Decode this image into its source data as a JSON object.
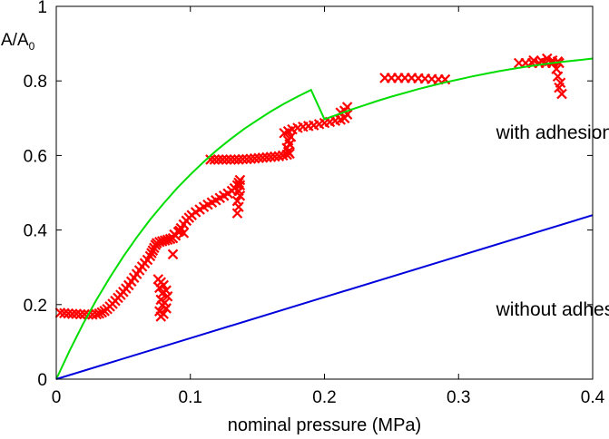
{
  "chart_data": {
    "type": "scatter",
    "xlabel": "nominal pressure (MPa)",
    "ylabel": "A/A",
    "ylabel_subscript": "0",
    "xlim": [
      0,
      0.4
    ],
    "ylim": [
      0,
      1
    ],
    "xticks": [
      0,
      0.1,
      0.2,
      0.3,
      0.4
    ],
    "xtick_labels": [
      "0",
      "0.1",
      "0.2",
      "0.3",
      "0.4"
    ],
    "yticks": [
      0,
      0.2,
      0.4,
      0.6,
      0.8,
      1
    ],
    "ytick_labels": [
      "0",
      "0.2",
      "0.4",
      "0.6",
      "0.8",
      "1"
    ],
    "grid": false,
    "annotations": [
      {
        "text": "with adhesion",
        "x": 0.328,
        "y": 0.645
      },
      {
        "text": "without adhesion",
        "x": 0.328,
        "y": 0.17
      }
    ],
    "series": [
      {
        "kind": "scatter",
        "marker": "x",
        "color": "#ff0000",
        "points": [
          [
            0.003,
            0.178
          ],
          [
            0.006,
            0.177
          ],
          [
            0.009,
            0.176
          ],
          [
            0.012,
            0.175
          ],
          [
            0.015,
            0.175
          ],
          [
            0.018,
            0.174
          ],
          [
            0.021,
            0.174
          ],
          [
            0.024,
            0.173
          ],
          [
            0.027,
            0.173
          ],
          [
            0.03,
            0.174
          ],
          [
            0.032,
            0.176
          ],
          [
            0.034,
            0.179
          ],
          [
            0.036,
            0.183
          ],
          [
            0.038,
            0.188
          ],
          [
            0.04,
            0.195
          ],
          [
            0.042,
            0.202
          ],
          [
            0.044,
            0.21
          ],
          [
            0.046,
            0.218
          ],
          [
            0.048,
            0.226
          ],
          [
            0.05,
            0.234
          ],
          [
            0.052,
            0.243
          ],
          [
            0.054,
            0.252
          ],
          [
            0.056,
            0.262
          ],
          [
            0.058,
            0.272
          ],
          [
            0.06,
            0.282
          ],
          [
            0.062,
            0.292
          ],
          [
            0.064,
            0.302
          ],
          [
            0.066,
            0.311
          ],
          [
            0.068,
            0.32
          ],
          [
            0.07,
            0.33
          ],
          [
            0.071,
            0.338
          ],
          [
            0.072,
            0.345
          ],
          [
            0.073,
            0.352
          ],
          [
            0.074,
            0.36
          ],
          [
            0.075,
            0.365
          ],
          [
            0.077,
            0.368
          ],
          [
            0.079,
            0.37
          ],
          [
            0.081,
            0.372
          ],
          [
            0.083,
            0.374
          ],
          [
            0.085,
            0.376
          ],
          [
            0.087,
            0.378
          ],
          [
            0.089,
            0.385
          ],
          [
            0.091,
            0.395
          ],
          [
            0.093,
            0.405
          ],
          [
            0.095,
            0.415
          ],
          [
            0.097,
            0.425
          ],
          [
            0.099,
            0.433
          ],
          [
            0.101,
            0.44
          ],
          [
            0.104,
            0.448
          ],
          [
            0.107,
            0.455
          ],
          [
            0.11,
            0.462
          ],
          [
            0.113,
            0.468
          ],
          [
            0.116,
            0.474
          ],
          [
            0.119,
            0.48
          ],
          [
            0.122,
            0.486
          ],
          [
            0.125,
            0.492
          ],
          [
            0.128,
            0.498
          ],
          [
            0.131,
            0.505
          ],
          [
            0.133,
            0.512
          ],
          [
            0.135,
            0.52
          ],
          [
            0.136,
            0.527
          ],
          [
            0.137,
            0.534
          ],
          [
            0.115,
            0.589
          ],
          [
            0.118,
            0.589
          ],
          [
            0.121,
            0.589
          ],
          [
            0.124,
            0.589
          ],
          [
            0.127,
            0.589
          ],
          [
            0.13,
            0.589
          ],
          [
            0.133,
            0.589
          ],
          [
            0.136,
            0.589
          ],
          [
            0.139,
            0.59
          ],
          [
            0.142,
            0.59
          ],
          [
            0.145,
            0.591
          ],
          [
            0.148,
            0.592
          ],
          [
            0.151,
            0.593
          ],
          [
            0.154,
            0.594
          ],
          [
            0.157,
            0.595
          ],
          [
            0.16,
            0.596
          ],
          [
            0.163,
            0.597
          ],
          [
            0.166,
            0.598
          ],
          [
            0.169,
            0.6
          ],
          [
            0.172,
            0.602
          ],
          [
            0.174,
            0.605
          ],
          [
            0.17,
            0.66
          ],
          [
            0.173,
            0.665
          ],
          [
            0.176,
            0.67
          ],
          [
            0.18,
            0.674
          ],
          [
            0.184,
            0.677
          ],
          [
            0.188,
            0.679
          ],
          [
            0.192,
            0.681
          ],
          [
            0.196,
            0.684
          ],
          [
            0.2,
            0.687
          ],
          [
            0.204,
            0.69
          ],
          [
            0.208,
            0.693
          ],
          [
            0.212,
            0.696
          ],
          [
            0.215,
            0.7
          ],
          [
            0.217,
            0.71
          ],
          [
            0.245,
            0.808
          ],
          [
            0.25,
            0.808
          ],
          [
            0.255,
            0.808
          ],
          [
            0.26,
            0.808
          ],
          [
            0.265,
            0.808
          ],
          [
            0.27,
            0.807
          ],
          [
            0.275,
            0.806
          ],
          [
            0.28,
            0.805
          ],
          [
            0.285,
            0.804
          ],
          [
            0.29,
            0.804
          ],
          [
            0.345,
            0.848
          ],
          [
            0.35,
            0.848
          ],
          [
            0.355,
            0.848
          ],
          [
            0.36,
            0.848
          ],
          [
            0.365,
            0.848
          ],
          [
            0.37,
            0.848
          ],
          [
            0.375,
            0.848
          ],
          [
            0.078,
            0.168
          ],
          [
            0.08,
            0.175
          ],
          [
            0.077,
            0.182
          ],
          [
            0.082,
            0.19
          ],
          [
            0.079,
            0.198
          ],
          [
            0.081,
            0.205
          ],
          [
            0.078,
            0.213
          ],
          [
            0.083,
            0.222
          ],
          [
            0.079,
            0.23
          ],
          [
            0.082,
            0.238
          ],
          [
            0.077,
            0.245
          ],
          [
            0.08,
            0.252
          ],
          [
            0.078,
            0.26
          ],
          [
            0.076,
            0.268
          ],
          [
            0.087,
            0.335
          ],
          [
            0.088,
            0.388
          ],
          [
            0.092,
            0.398
          ],
          [
            0.095,
            0.392
          ],
          [
            0.135,
            0.445
          ],
          [
            0.136,
            0.462
          ],
          [
            0.135,
            0.478
          ],
          [
            0.137,
            0.492
          ],
          [
            0.136,
            0.505
          ],
          [
            0.137,
            0.52
          ],
          [
            0.173,
            0.61
          ],
          [
            0.172,
            0.62
          ],
          [
            0.174,
            0.63
          ],
          [
            0.173,
            0.64
          ],
          [
            0.175,
            0.65
          ],
          [
            0.215,
            0.72
          ],
          [
            0.217,
            0.73
          ],
          [
            0.212,
            0.715
          ],
          [
            0.356,
            0.855
          ],
          [
            0.362,
            0.853
          ],
          [
            0.366,
            0.86
          ],
          [
            0.37,
            0.855
          ],
          [
            0.374,
            0.852
          ],
          [
            0.373,
            0.832
          ],
          [
            0.374,
            0.812
          ],
          [
            0.376,
            0.795
          ],
          [
            0.375,
            0.782
          ],
          [
            0.377,
            0.765
          ]
        ]
      },
      {
        "kind": "line",
        "color": "#00dd00",
        "points": [
          [
            0,
            0
          ],
          [
            0.01,
            0.077
          ],
          [
            0.02,
            0.148
          ],
          [
            0.03,
            0.213
          ],
          [
            0.04,
            0.273
          ],
          [
            0.05,
            0.329
          ],
          [
            0.06,
            0.38
          ],
          [
            0.07,
            0.428
          ],
          [
            0.08,
            0.471
          ],
          [
            0.09,
            0.512
          ],
          [
            0.1,
            0.549
          ],
          [
            0.11,
            0.583
          ],
          [
            0.12,
            0.615
          ],
          [
            0.13,
            0.644
          ],
          [
            0.14,
            0.671
          ],
          [
            0.15,
            0.695
          ],
          [
            0.16,
            0.718
          ],
          [
            0.17,
            0.739
          ],
          [
            0.18,
            0.758
          ],
          [
            0.19,
            0.776
          ],
          [
            0.2,
            0.697
          ],
          [
            0.21,
            0.71
          ],
          [
            0.22,
            0.723
          ],
          [
            0.23,
            0.735
          ],
          [
            0.24,
            0.747
          ],
          [
            0.25,
            0.758
          ],
          [
            0.26,
            0.768
          ],
          [
            0.27,
            0.778
          ],
          [
            0.28,
            0.787
          ],
          [
            0.29,
            0.796
          ],
          [
            0.3,
            0.804
          ],
          [
            0.31,
            0.812
          ],
          [
            0.32,
            0.819
          ],
          [
            0.33,
            0.826
          ],
          [
            0.34,
            0.832
          ],
          [
            0.35,
            0.838
          ],
          [
            0.36,
            0.843
          ],
          [
            0.37,
            0.848
          ],
          [
            0.38,
            0.852
          ],
          [
            0.39,
            0.856
          ],
          [
            0.4,
            0.86
          ]
        ]
      },
      {
        "kind": "line",
        "color": "#0000dd",
        "points": [
          [
            0,
            0
          ],
          [
            0.1,
            0.11
          ],
          [
            0.2,
            0.22
          ],
          [
            0.3,
            0.33
          ],
          [
            0.4,
            0.44
          ]
        ]
      }
    ]
  }
}
